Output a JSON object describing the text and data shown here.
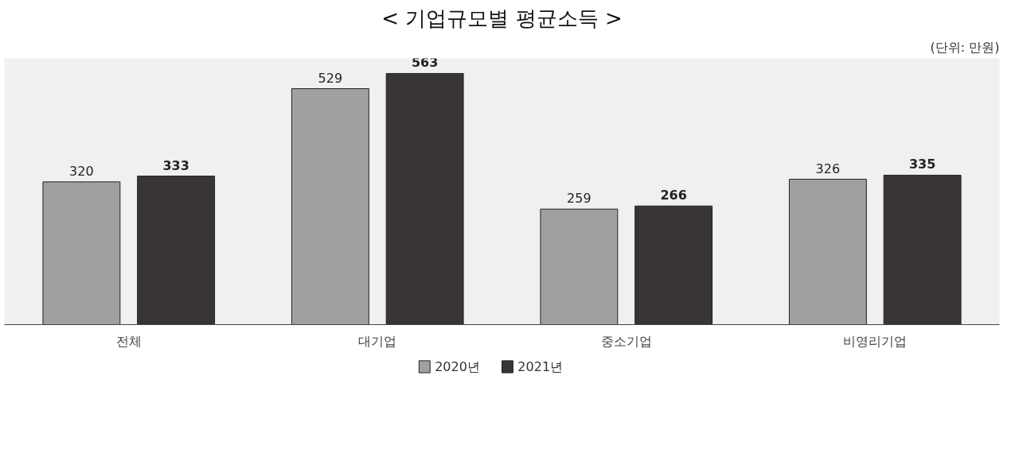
{
  "chart_data": {
    "type": "bar",
    "title": "< 기업규모별 평균소득 >",
    "annotations": [
      "(단위: 만원)"
    ],
    "categories": [
      "전체",
      "대기업",
      "중소기업",
      "비영리기업"
    ],
    "series": [
      {
        "name": "2020년",
        "color": "#a0a0a0",
        "values": [
          320,
          529,
          259,
          326
        ]
      },
      {
        "name": "2021년",
        "color": "#3a3535",
        "values": [
          333,
          563,
          266,
          335
        ]
      }
    ],
    "data_labels": true,
    "legend": "bottom",
    "grid": false
  }
}
